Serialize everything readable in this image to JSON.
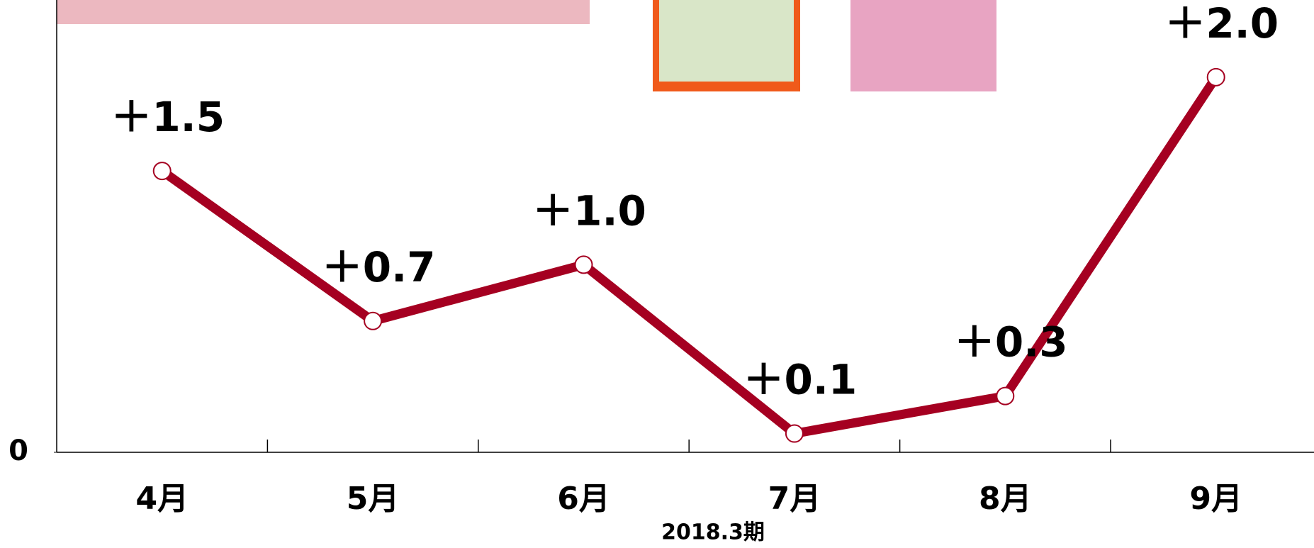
{
  "chart_data": {
    "type": "line",
    "categories": [
      "4月",
      "5月",
      "6月",
      "7月",
      "8月",
      "9月"
    ],
    "values": [
      1.5,
      0.7,
      1.0,
      0.1,
      0.3,
      2.0
    ],
    "value_labels": [
      "＋1.5",
      "＋0.7",
      "＋1.0",
      "＋0.1",
      "＋0.3",
      "＋2.0"
    ],
    "color": "#a50021",
    "ylim": [
      0,
      2.4
    ],
    "yticks": [
      0
    ],
    "xlabel": "2018.3期"
  }
}
